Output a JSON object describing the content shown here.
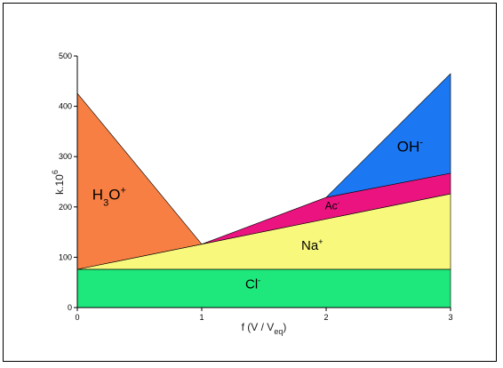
{
  "chart_data": {
    "type": "area",
    "title": "",
    "xlabel": {
      "main": "f (V / V",
      "sub": "eq",
      "tail": ")"
    },
    "ylabel": {
      "main": "k.10",
      "sup": "6"
    },
    "xlim": [
      0,
      3
    ],
    "ylim": [
      0,
      500
    ],
    "xticks": [
      0,
      1,
      2,
      3
    ],
    "yticks": [
      0,
      100,
      200,
      300,
      400,
      500
    ],
    "grid": false,
    "regions": [
      {
        "name": "Cl-",
        "label": {
          "parts": [
            {
              "t": "Cl",
              "s": "base"
            },
            {
              "t": "-",
              "s": "sup"
            }
          ]
        },
        "color": "#1ee87b",
        "polygon": [
          [
            0,
            0
          ],
          [
            3,
            0
          ],
          [
            3,
            76
          ],
          [
            0,
            76
          ]
        ],
        "label_at": [
          1.35,
          38
        ],
        "size": 15
      },
      {
        "name": "Na+",
        "label": {
          "parts": [
            {
              "t": "Na",
              "s": "base"
            },
            {
              "t": "+",
              "s": "sup"
            }
          ]
        },
        "color": "#f8f87c",
        "polygon": [
          [
            0,
            76
          ],
          [
            3,
            76
          ],
          [
            3,
            226
          ],
          [
            1,
            126
          ]
        ],
        "label_at": [
          1.8,
          115
        ],
        "size": 15
      },
      {
        "name": "H3O+",
        "label": {
          "parts": [
            {
              "t": "H",
              "s": "base"
            },
            {
              "t": "3",
              "s": "sub"
            },
            {
              "t": "O",
              "s": "base"
            },
            {
              "t": "+",
              "s": "sup"
            }
          ]
        },
        "color": "#f77f43",
        "polygon": [
          [
            0,
            76
          ],
          [
            1,
            126
          ],
          [
            0,
            426
          ]
        ],
        "label_at": [
          0.12,
          215
        ],
        "size": 17
      },
      {
        "name": "Ac-",
        "label": {
          "parts": [
            {
              "t": "Ac",
              "s": "base"
            },
            {
              "t": "-",
              "s": "sup"
            }
          ]
        },
        "color": "#ea137f",
        "polygon": [
          [
            1,
            126
          ],
          [
            2,
            176
          ],
          [
            3,
            226
          ],
          [
            3,
            267
          ],
          [
            2,
            219
          ]
        ],
        "label_at": [
          1.99,
          195
        ],
        "size": 12
      },
      {
        "name": "OH-",
        "label": {
          "parts": [
            {
              "t": "OH",
              "s": "base"
            },
            {
              "t": "-",
              "s": "sup"
            }
          ]
        },
        "color": "#1b77f2",
        "polygon": [
          [
            2,
            219
          ],
          [
            3,
            267
          ],
          [
            3,
            465
          ]
        ],
        "label_at": [
          2.57,
          310
        ],
        "size": 17
      }
    ]
  }
}
